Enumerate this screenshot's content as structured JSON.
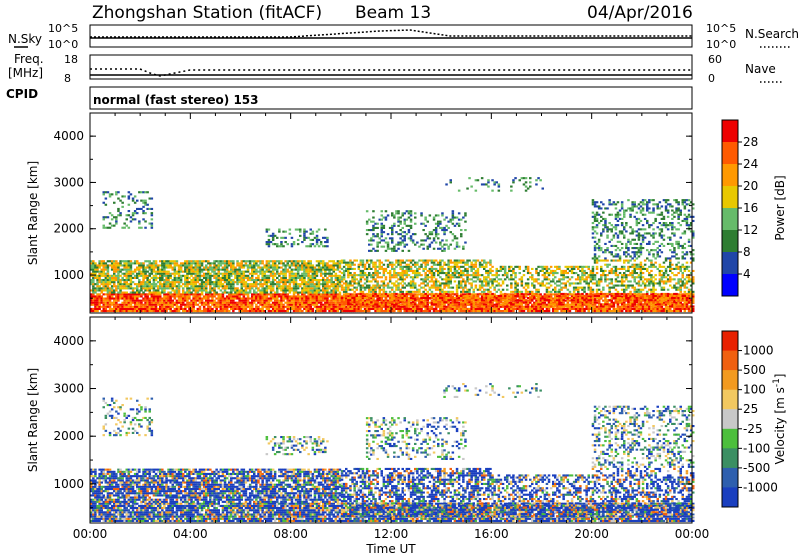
{
  "header": {
    "station": "Zhongshan Station (fitACF)",
    "beam": "Beam 13",
    "date": "04/Apr/2016"
  },
  "top_panel": {
    "left_label": "N.Sky",
    "right_label": "N.Search",
    "left_ticks": [
      "10^5",
      "10^0"
    ],
    "right_ticks": [
      "10^5",
      "10^0"
    ]
  },
  "freq_panel": {
    "left_label_1": "Freq.",
    "left_label_2": "[MHz]",
    "right_label": "Nave",
    "left_ticks": [
      "18",
      "8"
    ],
    "right_ticks": [
      "60",
      "0"
    ]
  },
  "cpid": {
    "label": "CPID",
    "text": "normal (fast stereo) 153"
  },
  "chart_data": [
    {
      "type": "heatmap",
      "name": "Power",
      "ylabel": "Slant Range [km]",
      "xlabel": "Time UT",
      "ylim": [
        180,
        4500
      ],
      "yticks": [
        "1000",
        "2000",
        "3000",
        "4000"
      ],
      "xticks": [
        "00:00",
        "04:00",
        "08:00",
        "12:00",
        "16:00",
        "20:00",
        "00:00"
      ],
      "colorbar_label": "Power [dB]",
      "colorbar_ticks": [
        "4",
        "8",
        "12",
        "16",
        "20",
        "24",
        "28"
      ],
      "colors": [
        "#0000ff",
        "#2046a8",
        "#2e7d32",
        "#66bb6a",
        "#e8c800",
        "#ff9900",
        "#ff5a00",
        "#ee0000"
      ]
    },
    {
      "type": "heatmap",
      "name": "Velocity",
      "ylabel": "Slant Range [km]",
      "xlabel": "Time UT",
      "ylim": [
        180,
        4500
      ],
      "yticks": [
        "1000",
        "2000",
        "3000",
        "4000"
      ],
      "xticks": [
        "00:00",
        "04:00",
        "08:00",
        "12:00",
        "16:00",
        "20:00",
        "00:00"
      ],
      "colorbar_label": "Velocity [m s^-1]",
      "colorbar_ticks": [
        "1000",
        "500",
        "100",
        "25",
        "-25",
        "-100",
        "-500",
        "-1000"
      ],
      "colors": [
        "#1a3fbf",
        "#2e5fae",
        "#3b8f63",
        "#4cbf3c",
        "#c8c8c8",
        "#f2c860",
        "#f29a20",
        "#f06010",
        "#e82000"
      ]
    }
  ]
}
